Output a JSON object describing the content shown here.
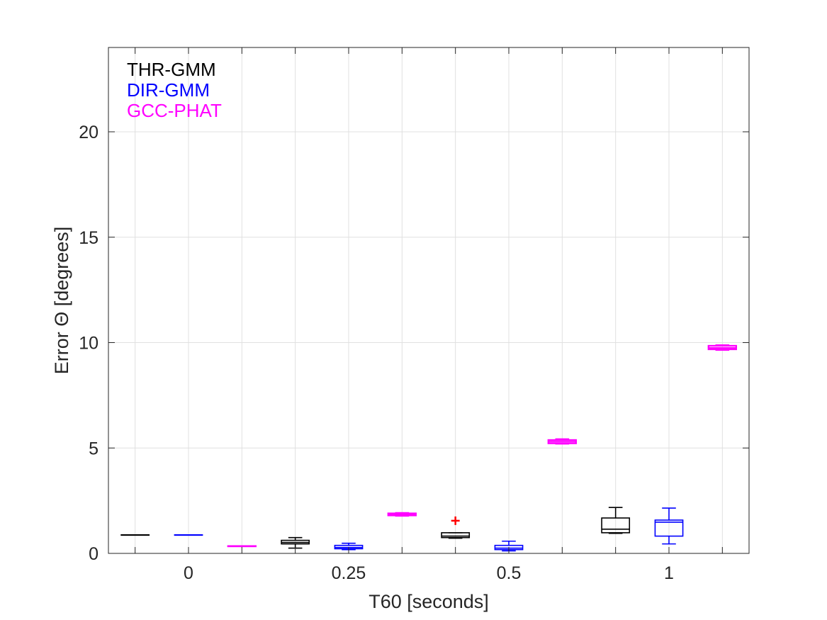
{
  "chart_data": {
    "type": "box",
    "xlabel": "T60 [seconds]",
    "ylabel": "Error Θ [degrees]",
    "ylim": [
      0,
      24
    ],
    "yticks": [
      0,
      5,
      10,
      15,
      20
    ],
    "grid": true,
    "legend_position": "top-left",
    "categories": [
      "0",
      "0.25",
      "0.5",
      "1"
    ],
    "series": [
      {
        "name": "THR-GMM",
        "color": "#000000",
        "boxes": [
          {
            "min": 0.88,
            "q1": 0.88,
            "median": 0.88,
            "q3": 0.88,
            "max": 0.88
          },
          {
            "min": 0.25,
            "q1": 0.45,
            "median": 0.52,
            "q3": 0.62,
            "max": 0.75
          },
          {
            "min": 0.72,
            "q1": 0.75,
            "median": 0.82,
            "q3": 0.98,
            "max": 0.98,
            "outliers": [
              1.55
            ]
          },
          {
            "min": 0.95,
            "q1": 0.98,
            "median": 1.15,
            "q3": 1.68,
            "max": 2.18
          }
        ]
      },
      {
        "name": "DIR-GMM",
        "color": "#0000ff",
        "boxes": [
          {
            "min": 0.88,
            "q1": 0.88,
            "median": 0.88,
            "q3": 0.88,
            "max": 0.88
          },
          {
            "min": 0.18,
            "q1": 0.22,
            "median": 0.28,
            "q3": 0.38,
            "max": 0.48
          },
          {
            "min": 0.12,
            "q1": 0.18,
            "median": 0.25,
            "q3": 0.38,
            "max": 0.58
          },
          {
            "min": 0.45,
            "q1": 0.82,
            "median": 1.48,
            "q3": 1.58,
            "max": 2.15
          }
        ]
      },
      {
        "name": "GCC-PHAT",
        "color": "#ff00ff",
        "boxes": [
          {
            "min": 0.35,
            "q1": 0.35,
            "median": 0.35,
            "q3": 0.35,
            "max": 0.35
          },
          {
            "min": 1.78,
            "q1": 1.8,
            "median": 1.85,
            "q3": 1.9,
            "max": 1.92
          },
          {
            "min": 5.2,
            "q1": 5.22,
            "median": 5.3,
            "q3": 5.38,
            "max": 5.42
          },
          {
            "min": 9.65,
            "q1": 9.68,
            "median": 9.75,
            "q3": 9.85,
            "max": 9.88
          }
        ]
      }
    ]
  }
}
